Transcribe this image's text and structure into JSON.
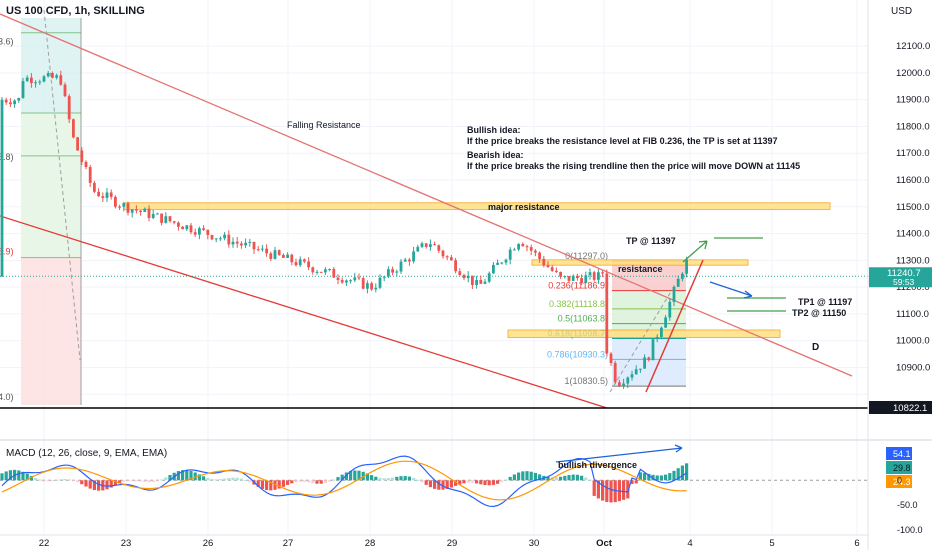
{
  "header": {
    "symbol": "US 100 CFD, 1h, SKILLING",
    "currency": "USD",
    "macd_title": "MACD (12, 26, close, 9, EMA, EMA)"
  },
  "colors": {
    "up": "#26a69a",
    "down": "#ef5350",
    "trend": "#e53935",
    "zone_fill": "#ffe082",
    "zone_border": "#f9a825",
    "green": "#43a047",
    "blue": "#1e63d6",
    "macd_line": "#2962ff",
    "signal_line": "#ff9800",
    "price_badge": "#26a69a"
  },
  "chart_data": {
    "type": "candlestick",
    "price_axis": [
      12100,
      12000,
      11900,
      11800,
      11700,
      11600,
      11500,
      11400,
      11300,
      11200,
      11100,
      11000,
      10900,
      10800
    ],
    "price_range": [
      10760,
      12175
    ],
    "macd_axis": [
      50.0,
      0,
      -50.0,
      -100.0
    ],
    "macd_range": [
      -110,
      75
    ],
    "x_labels": [
      {
        "label": "22",
        "day": 22
      },
      {
        "label": "23",
        "day": 23
      },
      {
        "label": "26",
        "day": 26
      },
      {
        "label": "27",
        "day": 27
      },
      {
        "label": "28",
        "day": 28
      },
      {
        "label": "29",
        "day": 29
      },
      {
        "label": "30",
        "day": 30
      },
      {
        "label": "Oct",
        "day": 31
      },
      {
        "label": "4",
        "day": 32
      },
      {
        "label": "5",
        "day": 33
      },
      {
        "label": "6",
        "day": 34
      }
    ],
    "current_price": "11240.7",
    "countdown": "59:53",
    "support_price": "10822.1",
    "macd_values": [
      "54.1",
      "29.8",
      "24.3"
    ],
    "fib_levels": [
      {
        "label": "0(11297.0)",
        "price": 11297.0
      },
      {
        "label": "0.236(11186.9)",
        "price": 11186.9
      },
      {
        "label": "0.382(11118.8)",
        "price": 11118.8
      },
      {
        "label": "0.5(11063.8)",
        "price": 11063.8
      },
      {
        "label": "0.618(11008.7)",
        "price": 11008.7
      },
      {
        "label": "0.786(10930.3)",
        "price": 10930.3
      },
      {
        "label": "1(10830.5)",
        "price": 10830.5
      }
    ],
    "left_edge_labels": [
      "3.6)",
      "8.8)",
      "8.9)",
      "4.0)"
    ],
    "annotations": {
      "falling_resistance": "Falling Resistance",
      "bullish_title": "Bullish idea:",
      "bullish_text": "If the price breaks the resistance level at FIB 0.236, the TP is set at 11397",
      "bearish_title": "Bearish idea:",
      "bearish_text": "If the price breaks the rising trendline then the price will move DOWN at 11145",
      "major_resistance": "major resistance",
      "resistance": "resistance",
      "tp": "TP @ 11397",
      "tp1": "TP1 @ 11197",
      "tp2": "TP2  @ 11150",
      "d": "D",
      "bullish_divergence": "bullish divergence"
    },
    "key_points": [
      {
        "day": 22.2,
        "price": 11980
      },
      {
        "day": 22.35,
        "price": 11760
      },
      {
        "day": 22.6,
        "price": 11560
      },
      {
        "day": 23.0,
        "price": 11500
      },
      {
        "day": 24.2,
        "price": 11380
      },
      {
        "day": 26.0,
        "price": 11200
      },
      {
        "day": 26.7,
        "price": 11370
      },
      {
        "day": 27.3,
        "price": 11200
      },
      {
        "day": 27.8,
        "price": 11380
      },
      {
        "day": 28.3,
        "price": 11230
      },
      {
        "day": 28.8,
        "price": 11240
      },
      {
        "day": 29.0,
        "price": 11480
      },
      {
        "day": 29.5,
        "price": 11460
      },
      {
        "day": 30.0,
        "price": 11300
      },
      {
        "day": 30.2,
        "price": 11070
      },
      {
        "day": 30.5,
        "price": 11190
      },
      {
        "day": 30.8,
        "price": 11250
      },
      {
        "day": 31.0,
        "price": 11000
      },
      {
        "day": 31.15,
        "price": 10840
      },
      {
        "day": 31.5,
        "price": 10930
      },
      {
        "day": 31.75,
        "price": 11130
      },
      {
        "day": 31.95,
        "price": 11297
      },
      {
        "day": 32.1,
        "price": 11240
      }
    ]
  }
}
